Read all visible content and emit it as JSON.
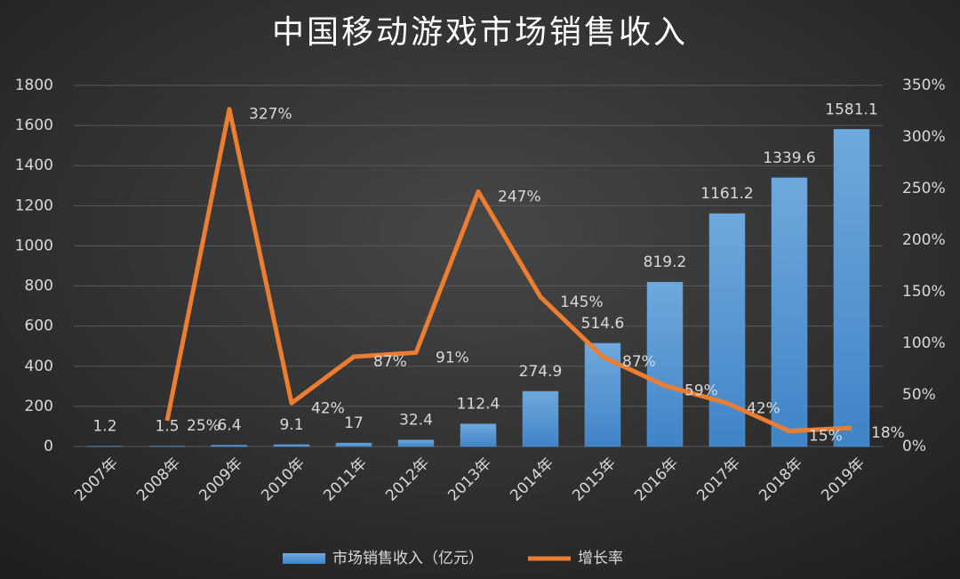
{
  "chart_data": {
    "type": "bar",
    "title": "中国移动游戏市场销售收入",
    "categories": [
      "2007年",
      "2008年",
      "2009年",
      "2010年",
      "2011年",
      "2012年",
      "2013年",
      "2014年",
      "2015年",
      "2016年",
      "2017年",
      "2018年",
      "2019年"
    ],
    "series": [
      {
        "name": "市场销售收入（亿元）",
        "type": "bar",
        "color": "#5b9bd5",
        "values": [
          1.2,
          1.5,
          6.4,
          9.1,
          17,
          32.4,
          112.4,
          274.9,
          514.6,
          819.2,
          1161.2,
          1339.6,
          1581.1
        ]
      },
      {
        "name": "增长率",
        "type": "line",
        "color": "#ed7d31",
        "axis": "y2",
        "values": [
          null,
          25,
          327,
          42,
          87,
          91,
          247,
          145,
          87,
          59,
          42,
          15,
          18
        ],
        "value_labels": [
          null,
          "25%",
          "327%",
          "42%",
          "87%",
          "91%",
          "247%",
          "145%",
          "87%",
          "59%",
          "42%",
          "15%",
          "18%"
        ]
      }
    ],
    "ylim": [
      0,
      1800
    ],
    "yticks": [
      0,
      200,
      400,
      600,
      800,
      1000,
      1200,
      1400,
      1600,
      1800
    ],
    "y2lim": [
      0,
      350
    ],
    "y2ticks": [
      {
        "value": 0,
        "label": "0%"
      },
      {
        "value": 50,
        "label": "50%"
      },
      {
        "value": 100,
        "label": "100%"
      },
      {
        "value": 150,
        "label": "150%"
      },
      {
        "value": 200,
        "label": "200%"
      },
      {
        "value": 250,
        "label": "250%"
      },
      {
        "value": 300,
        "label": "300%"
      },
      {
        "value": 350,
        "label": "350%"
      }
    ],
    "grid": true,
    "legend": "bottom"
  }
}
